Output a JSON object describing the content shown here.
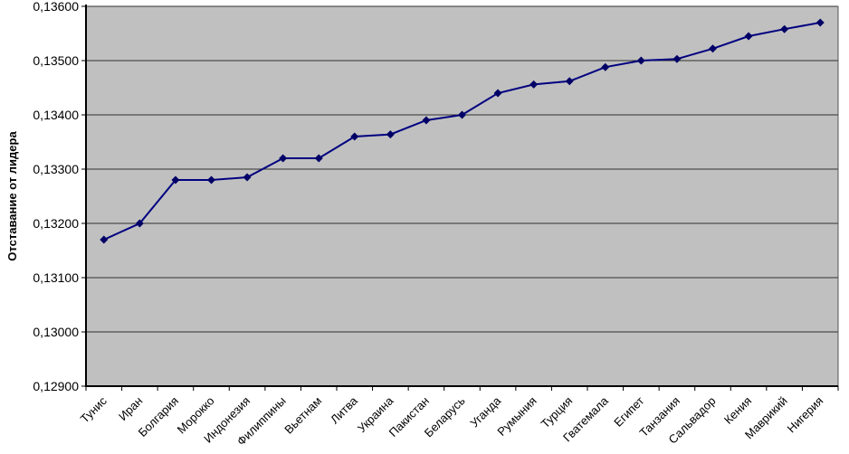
{
  "chart_data": {
    "type": "line",
    "title": "",
    "xlabel": "",
    "ylabel": "Отставание от лидера",
    "categories": [
      "Тунис",
      "Иран",
      "Болгария",
      "Морокко",
      "Индонезия",
      "Филиппины",
      "Вьетнам",
      "Литва",
      "Украина",
      "Пакистан",
      "Беларусь",
      "Уганда",
      "Румыния",
      "Турция",
      "Гватемала",
      "Египет",
      "Танзания",
      "Сальвадор",
      "Кения",
      "Маврикий",
      "Нигерия"
    ],
    "values": [
      0.1317,
      0.132,
      0.1328,
      0.1328,
      0.13285,
      0.1332,
      0.1332,
      0.1336,
      0.13364,
      0.1339,
      0.134,
      0.1344,
      0.13456,
      0.13462,
      0.13488,
      0.135,
      0.13503,
      0.13522,
      0.13545,
      0.13558,
      0.1357
    ],
    "ylim": [
      0.129,
      0.136
    ],
    "ytick_values": [
      0.129,
      0.13,
      0.131,
      0.132,
      0.133,
      0.134,
      0.135,
      0.136
    ],
    "ytick_labels": [
      "0,12900",
      "0,13000",
      "0,13100",
      "0,13200",
      "0,13300",
      "0,13400",
      "0,13500",
      "0,13600"
    ],
    "grid": true,
    "legend": "none",
    "colors": {
      "series_line": "#000080",
      "marker": "#000066",
      "plot_background": "#c0c0c0",
      "gridline": "#303030",
      "axis": "#000000",
      "text": "#000000",
      "page_background": "#ffffff"
    },
    "marker_shape": "diamond"
  }
}
